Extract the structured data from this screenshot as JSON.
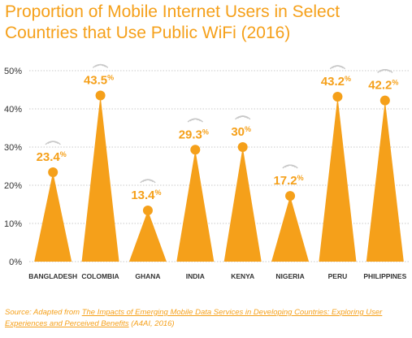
{
  "title_line1": "Proportion of Mobile Internet Users in Select",
  "title_line2": "Countries that Use Public WiFi (2016)",
  "chart_data": {
    "type": "bar",
    "title": "Proportion of Mobile Internet Users in Select Countries that Use Public WiFi (2016)",
    "categories": [
      "BANGLADESH",
      "COLOMBIA",
      "GHANA",
      "INDIA",
      "KENYA",
      "NIGERIA",
      "PERU",
      "PHILIPPINES"
    ],
    "values": [
      23.4,
      43.5,
      13.4,
      29.3,
      30,
      17.2,
      43.2,
      42.2
    ],
    "labels": [
      "23.4%",
      "43.5%",
      "13.4%",
      "29.3%",
      "30%",
      "17.2%",
      "43.2%",
      "42.2%"
    ],
    "yticks": [
      "0%",
      "10%",
      "20%",
      "30%",
      "40%",
      "50%"
    ],
    "ylim": [
      0,
      50
    ],
    "xlabel": "",
    "ylabel": "",
    "grid": true,
    "colors": {
      "accent": "#f5a01a",
      "grid": "#c9c9c9",
      "wifi": "#c8c8c8",
      "axis_text": "#333333"
    }
  },
  "source": {
    "prefix": "Source: Adapted from ",
    "work": "The Impacts of Emerging Mobile Data Services in Developing Countries: Exploring User Experiences and Perceived Benefits",
    "suffix": " (A4AI, 2016)"
  }
}
